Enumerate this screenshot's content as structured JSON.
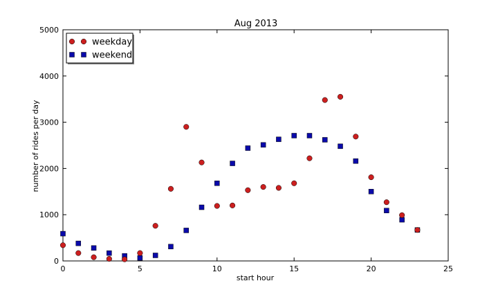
{
  "chart_data": {
    "type": "scatter",
    "title": "Aug 2013",
    "xlabel": "start hour",
    "ylabel": "number of rides per day",
    "xlim": [
      0,
      25
    ],
    "ylim": [
      0,
      5000
    ],
    "xticks": [
      0,
      5,
      10,
      15,
      20,
      25
    ],
    "yticks": [
      0,
      1000,
      2000,
      3000,
      4000,
      5000
    ],
    "grid": false,
    "legend_position": "top-left",
    "series": [
      {
        "name": "weekday",
        "marker": "circle",
        "color": "#cc1f1f",
        "x": [
          0,
          1,
          2,
          3,
          4,
          5,
          6,
          7,
          8,
          9,
          10,
          11,
          12,
          13,
          14,
          15,
          16,
          17,
          18,
          19,
          20,
          21,
          22,
          23
        ],
        "y": [
          340,
          170,
          80,
          45,
          35,
          170,
          760,
          1560,
          2900,
          2130,
          1190,
          1200,
          1530,
          1600,
          1580,
          1680,
          2220,
          3480,
          3550,
          2690,
          1810,
          1270,
          990,
          670
        ]
      },
      {
        "name": "weekend",
        "marker": "square",
        "color": "#0a0aaa",
        "x": [
          0,
          1,
          2,
          3,
          4,
          5,
          6,
          7,
          8,
          9,
          10,
          11,
          12,
          13,
          14,
          15,
          16,
          17,
          18,
          19,
          20,
          21,
          22,
          23
        ],
        "y": [
          590,
          380,
          280,
          170,
          110,
          65,
          120,
          310,
          660,
          1160,
          1680,
          2110,
          2440,
          2510,
          2630,
          2710,
          2710,
          2620,
          2480,
          2160,
          1500,
          1090,
          890,
          670
        ]
      }
    ]
  }
}
